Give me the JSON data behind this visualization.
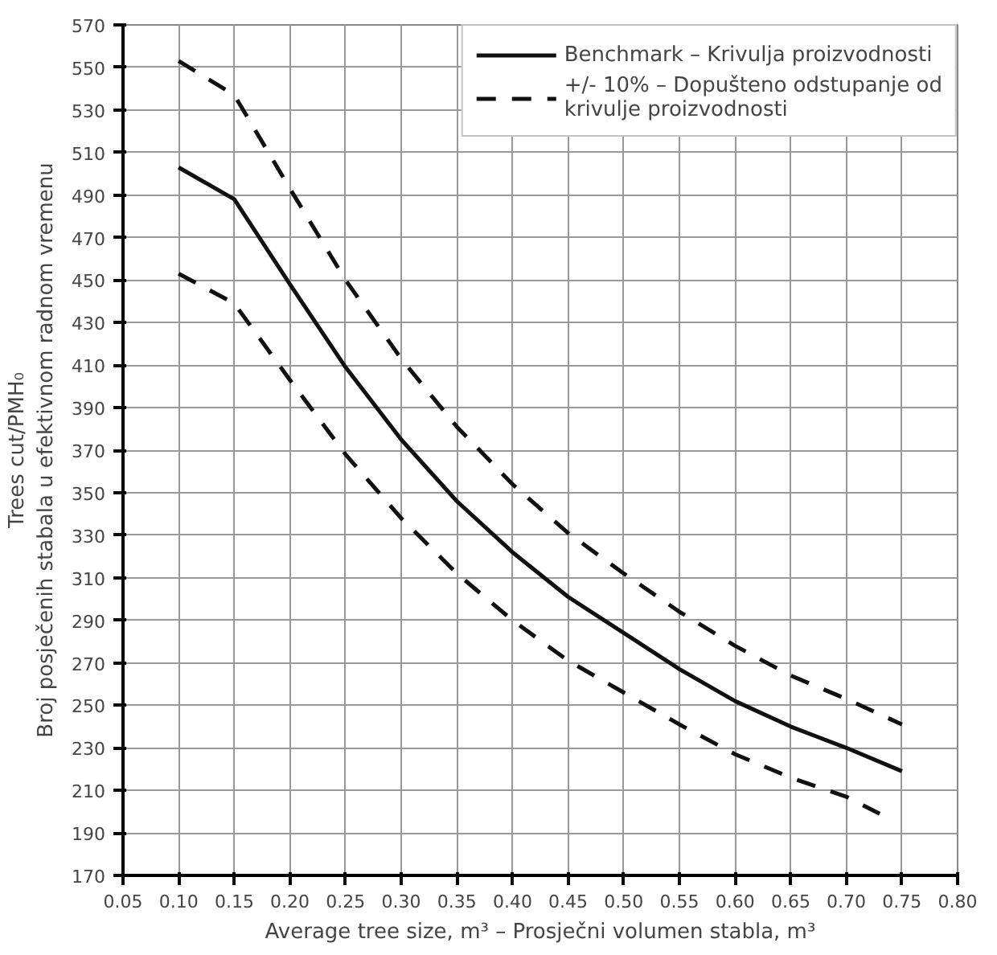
{
  "chart_data": {
    "type": "line",
    "xlabel": "Average tree size, m³ – Prosječni volumen stabla, m³",
    "ylabel": "Trees cut/PMH₀\nBroj posječenih stabala u efektivnom radnom vremenu",
    "x": [
      0.1,
      0.15,
      0.2,
      0.25,
      0.3,
      0.35,
      0.4,
      0.45,
      0.5,
      0.55,
      0.6,
      0.65,
      0.7,
      0.75
    ],
    "series": [
      {
        "name": "Benchmark – Krivulja proizvodnosti",
        "color": "#111111",
        "line_style": "solid",
        "values": [
          503,
          488,
          448,
          409,
          375,
          346,
          322,
          301,
          284,
          267,
          252,
          240,
          230,
          219
        ]
      },
      {
        "name": "+/- 10% – Dopušteno odstupanje od krivulje proizvodnosti",
        "color": "#111111",
        "line_style": "dashed",
        "values": [
          553,
          537,
          493,
          450,
          413,
          381,
          354,
          331,
          312,
          294,
          278,
          264,
          253,
          241
        ]
      },
      {
        "color": "#111111",
        "line_style": "dashed",
        "x": [
          0.1,
          0.15,
          0.2,
          0.25,
          0.3,
          0.35,
          0.4,
          0.45,
          0.5,
          0.55,
          0.6,
          0.65,
          0.7,
          0.73
        ],
        "values": [
          453,
          439,
          403,
          368,
          338,
          312,
          290,
          271,
          256,
          241,
          227,
          216,
          207,
          199
        ]
      }
    ],
    "xlim": [
      0.05,
      0.8
    ],
    "ylim": [
      170,
      570
    ],
    "xticks": [
      {
        "value": 0.05,
        "label": "0.05"
      },
      {
        "value": 0.1,
        "label": "0.10"
      },
      {
        "value": 0.15,
        "label": "0.15"
      },
      {
        "value": 0.2,
        "label": "0.20"
      },
      {
        "value": 0.25,
        "label": "0.25"
      },
      {
        "value": 0.3,
        "label": "0.30"
      },
      {
        "value": 0.35,
        "label": "0.35"
      },
      {
        "value": 0.4,
        "label": "0.40"
      },
      {
        "value": 0.45,
        "label": "0.45"
      },
      {
        "value": 0.5,
        "label": "0.50"
      },
      {
        "value": 0.55,
        "label": "0.55"
      },
      {
        "value": 0.6,
        "label": "0.60"
      },
      {
        "value": 0.65,
        "label": "0.65"
      },
      {
        "value": 0.7,
        "label": "0.70"
      },
      {
        "value": 0.75,
        "label": "0.75"
      },
      {
        "value": 0.8,
        "label": "0.80"
      }
    ],
    "yticks": [
      170,
      190,
      210,
      230,
      250,
      270,
      290,
      310,
      330,
      350,
      370,
      390,
      410,
      430,
      450,
      470,
      490,
      510,
      530,
      550,
      570
    ],
    "grid": true,
    "legend": "top right",
    "marker": "none"
  }
}
